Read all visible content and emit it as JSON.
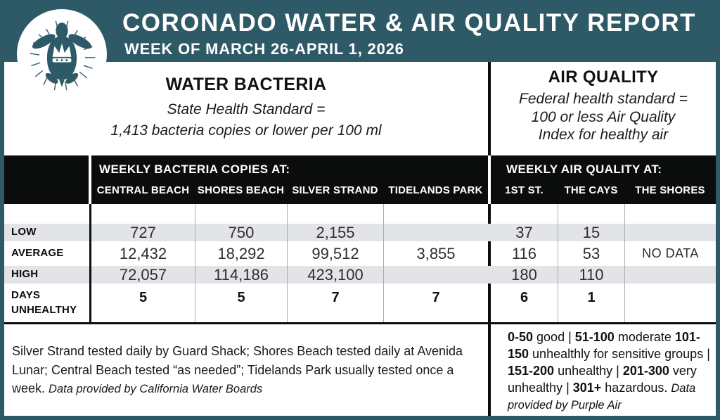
{
  "colors": {
    "teal": "#2e5a67",
    "band_black": "#0b0c0c",
    "row_stripe_gray": "#e2e4e7",
    "white": "#ffffff"
  },
  "header": {
    "title": "CORONADO WATER & AIR QUALITY REPORT",
    "subtitle": "WEEK OF MARCH 26-APRIL 1, 2026",
    "logo": "crowned-sea-turtle-badge"
  },
  "water_section": {
    "title": "WATER BACTERIA",
    "standard_line1": "State Health Standard  =",
    "standard_line2": "1,413 bacteria copies or lower per 100 ml"
  },
  "air_section": {
    "title": "AIR QUALITY",
    "standard_line1": "Federal health standard =",
    "standard_line2": "100 or less Air Quality",
    "standard_line3": "Index for healthy air"
  },
  "table": {
    "water_group_header": "WEEKLY BACTERIA COPIES AT:",
    "air_group_header": "WEEKLY AIR QUALITY AT:",
    "water_columns": [
      "CENTRAL BEACH",
      "SHORES BEACH",
      "SILVER STRAND",
      "TIDELANDS PARK"
    ],
    "air_columns": [
      "1ST ST.",
      "THE CAYS",
      "THE SHORES"
    ],
    "rows": [
      {
        "label": "LOW",
        "water": [
          "727",
          "750",
          "2,155",
          ""
        ],
        "air": [
          "37",
          "15",
          ""
        ]
      },
      {
        "label": "AVERAGE",
        "water": [
          "12,432",
          "18,292",
          "99,512",
          "3,855"
        ],
        "air": [
          "116",
          "53",
          "NO DATA"
        ]
      },
      {
        "label": "HIGH",
        "water": [
          "72,057",
          "114,186",
          "423,100",
          ""
        ],
        "air": [
          "180",
          "110",
          ""
        ]
      },
      {
        "label": "DAYS UNHEALTHY",
        "water": [
          "5",
          "5",
          "7",
          "7"
        ],
        "air": [
          "6",
          "1",
          ""
        ]
      }
    ]
  },
  "footnotes": {
    "water_note": "Silver Strand tested daily by Guard Shack; Shores Beach tested daily at Avenida Lunar; Central Beach tested “as needed”; Tidelands Park usually tested once a week. ",
    "water_source": "Data provided by California Water Boards",
    "aqi_legend_segments": [
      {
        "t": "0-50",
        "b": 1
      },
      {
        "t": " good | ",
        "b": 0
      },
      {
        "t": "51-100",
        "b": 1
      },
      {
        "t": " moderate ",
        "b": 0
      },
      {
        "t": "101-150",
        "b": 1
      },
      {
        "t": " unhealthly for sensitive groups | ",
        "b": 0
      },
      {
        "t": "151-200",
        "b": 1
      },
      {
        "t": " unhealthy | ",
        "b": 0
      },
      {
        "t": "201-300",
        "b": 1
      },
      {
        "t": " very unhealthy | ",
        "b": 0
      },
      {
        "t": "301+",
        "b": 1
      },
      {
        "t": " hazardous. ",
        "b": 0
      },
      {
        "t": "Data provided by Purple Air",
        "b": 0,
        "i": 1
      }
    ]
  }
}
